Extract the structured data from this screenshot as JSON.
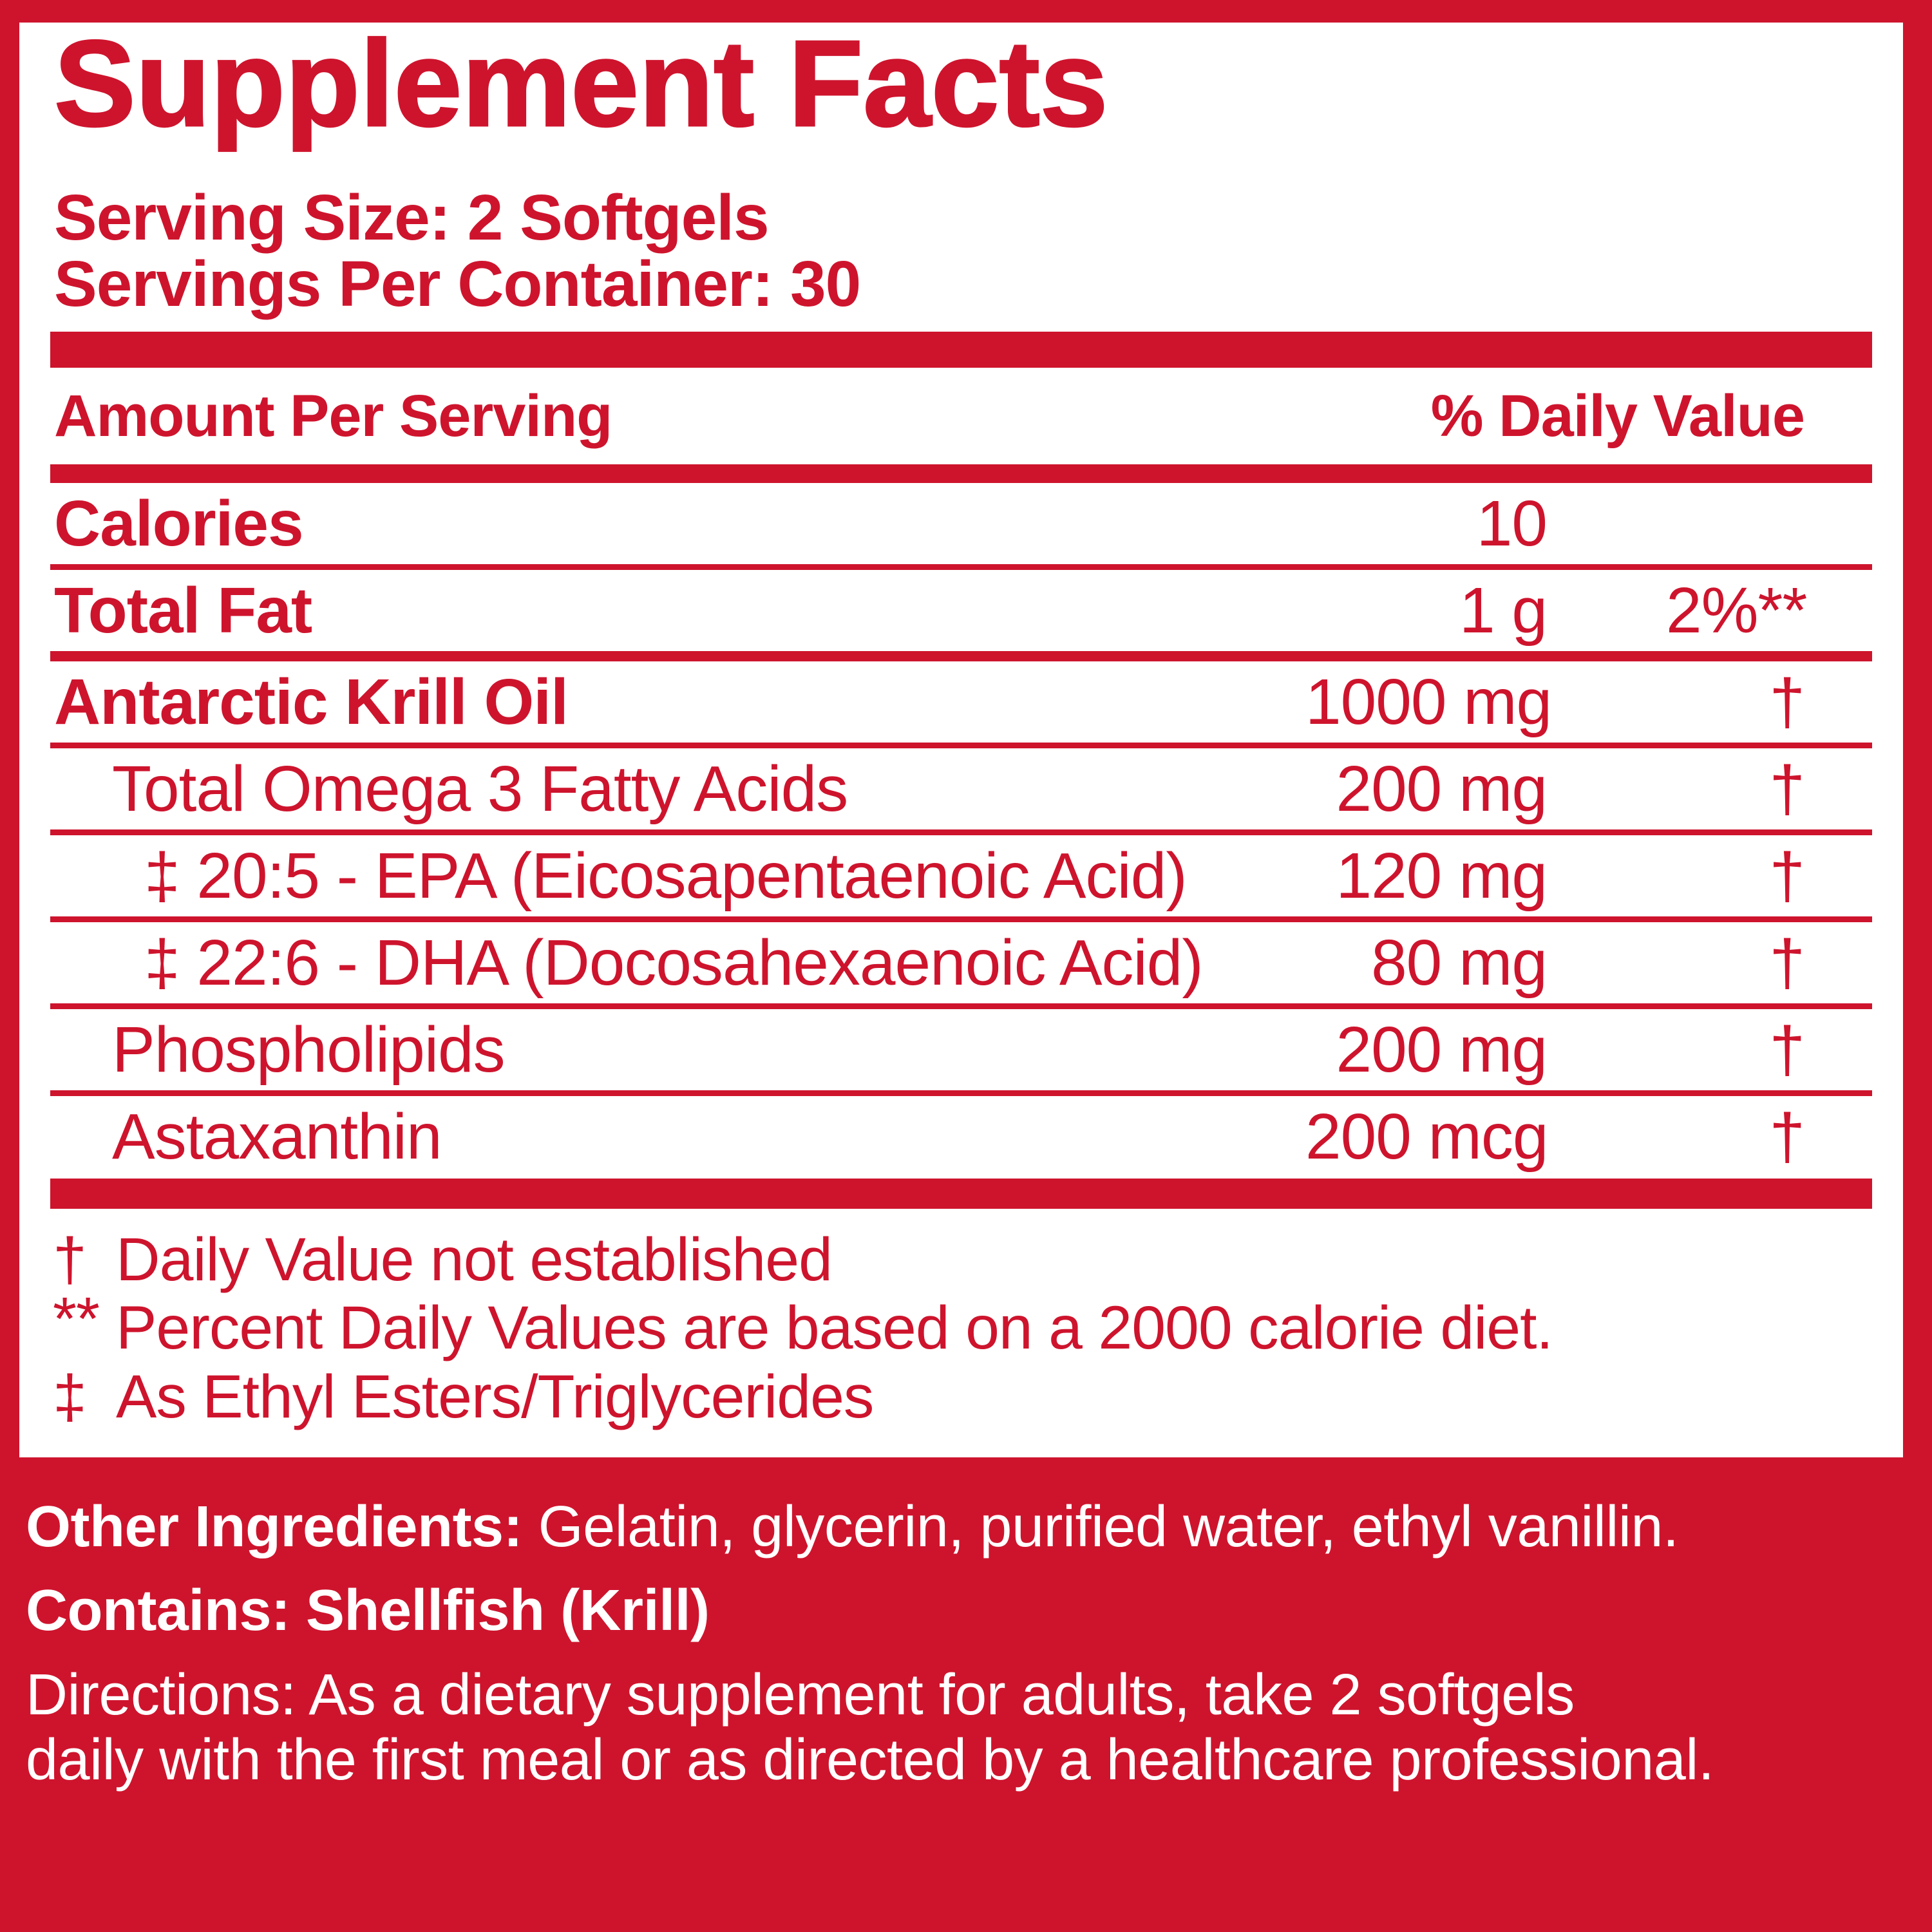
{
  "colors": {
    "red": "#CE142D",
    "white": "#FFFFFF"
  },
  "title": "Supplement Facts",
  "serving": {
    "size": "Serving Size: 2 Softgels",
    "per_container": "Servings Per Container: 30"
  },
  "table": {
    "header": {
      "amount": "Amount Per Serving",
      "dv": "% Daily Value"
    },
    "rows": [
      {
        "name": "Calories",
        "amount": "10",
        "dv": ""
      },
      {
        "name": "Total Fat",
        "amount": "1 g",
        "dv": "2%**"
      },
      {
        "name": "Antarctic Krill Oil",
        "amount": "1000 mg",
        "dv": "†"
      },
      {
        "name": "Total Omega 3 Fatty Acids",
        "amount": "200 mg",
        "dv": "†"
      },
      {
        "name": "‡ 20:5 - EPA (Eicosapentaenoic Acid)",
        "amount": "120 mg",
        "dv": "†"
      },
      {
        "name": "‡ 22:6 - DHA (Docosahexaenoic Acid)",
        "amount": "80 mg",
        "dv": "†"
      },
      {
        "name": "Phospholipids",
        "amount": "200 mg",
        "dv": "†"
      },
      {
        "name": "Astaxanthin",
        "amount": "200 mcg",
        "dv": "†"
      }
    ]
  },
  "footnotes": [
    {
      "marker": "†",
      "text": "Daily Value not established"
    },
    {
      "marker": "**",
      "text": "Percent Daily Values are based on a 2000 calorie diet."
    },
    {
      "marker": "‡",
      "text": "As Ethyl Esters/Triglycerides"
    }
  ],
  "bottom": {
    "other_ingredients_label": "Other Ingredients:",
    "other_ingredients_text": "Gelatin, glycerin, purified water, ethyl vanillin.",
    "contains_label": "Contains:",
    "contains_text": "Shellfish (Krill)",
    "directions_label": "Directions:",
    "directions_line1": "As a dietary supplement for adults, take 2 softgels",
    "directions_line2": "daily with the first meal or as directed by a healthcare professional."
  }
}
